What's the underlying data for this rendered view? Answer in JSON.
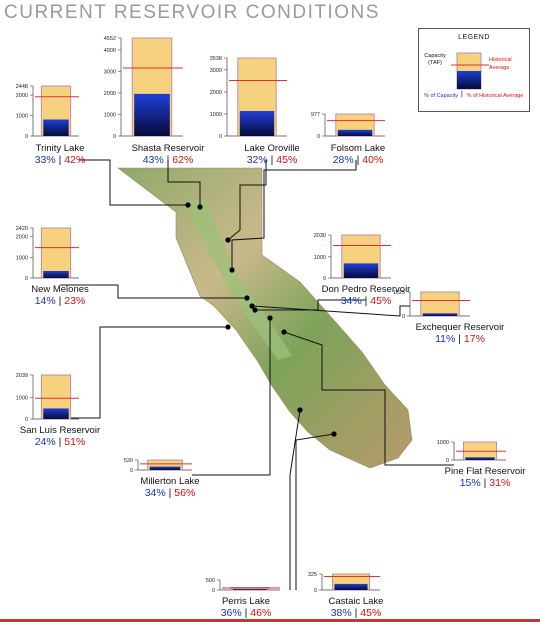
{
  "title": "CURRENT RESERVOIR CONDITIONS",
  "legend": {
    "title": "LEGEND",
    "capacity_label": "Capacity (TAF)",
    "historical_label": "Historical Average",
    "pct_capacity_label": "% of Capacity",
    "pct_historical_label": "% of Historical Average",
    "separator": "|"
  },
  "colors": {
    "capacity_fill": "#f7d27e",
    "capacity_border": "#b07ba8",
    "storage_top": "#1f3fd6",
    "storage_bottom": "#050a3a",
    "historical_line": "#e03030",
    "pct_capacity": "#1a33b3",
    "pct_historical": "#d11111",
    "leader": "#111111",
    "title": "#9a9a9a",
    "bottom_rule": "#c0392b"
  },
  "chart_data": {
    "type": "bar",
    "title": "CURRENT RESERVOIR CONDITIONS",
    "unit": "TAF",
    "reservoirs": [
      {
        "name": "Trinity Lake",
        "capacity": 2448,
        "ticks": [
          "2448",
          "2000",
          "1000",
          "0"
        ],
        "pct_capacity": "33%",
        "pct_historical": "42%"
      },
      {
        "name": "Shasta Reservoir",
        "capacity": 4552,
        "ticks": [
          "4552",
          "4000",
          "3000",
          "2000",
          "1000",
          "0"
        ],
        "pct_capacity": "43%",
        "pct_historical": "62%"
      },
      {
        "name": "Lake Oroville",
        "capacity": 3538,
        "ticks": [
          "3538",
          "3000",
          "2000",
          "1000",
          "0"
        ],
        "pct_capacity": "32%",
        "pct_historical": "45%"
      },
      {
        "name": "Folsom Lake",
        "capacity": 977,
        "ticks": [
          "977",
          "0"
        ],
        "pct_capacity": "28%",
        "pct_historical": "40%"
      },
      {
        "name": "New Melones",
        "capacity": 2420,
        "ticks": [
          "2420",
          "2000",
          "1000",
          "0"
        ],
        "pct_capacity": "14%",
        "pct_historical": "23%"
      },
      {
        "name": "Don Pedro Reservoir",
        "capacity": 2030,
        "ticks": [
          "2030",
          "1000",
          "0"
        ],
        "pct_capacity": "34%",
        "pct_historical": "45%"
      },
      {
        "name": "Exchequer Reservoir",
        "capacity": 1025,
        "ticks": [
          "1025",
          "0"
        ],
        "pct_capacity": "11%",
        "pct_historical": "17%"
      },
      {
        "name": "San Luis Reservoir",
        "capacity": 2039,
        "ticks": [
          "2039",
          "1000",
          "0"
        ],
        "pct_capacity": "24%",
        "pct_historical": "51%"
      },
      {
        "name": "Millerton Lake",
        "capacity": 520,
        "ticks": [
          "520",
          "0"
        ],
        "pct_capacity": "34%",
        "pct_historical": "56%"
      },
      {
        "name": "Pine Flat Reservoir",
        "capacity": 1000,
        "ticks": [
          "1000",
          "0"
        ],
        "pct_capacity": "15%",
        "pct_historical": "31%"
      },
      {
        "name": "Perris Lake",
        "capacity": 131,
        "ticks": [
          "500",
          "0"
        ],
        "pct_capacity": "36%",
        "pct_historical": "46%"
      },
      {
        "name": "Castaic Lake",
        "capacity": 325,
        "ticks": [
          "325",
          "0"
        ],
        "pct_capacity": "38%",
        "pct_historical": "45%"
      }
    ]
  }
}
